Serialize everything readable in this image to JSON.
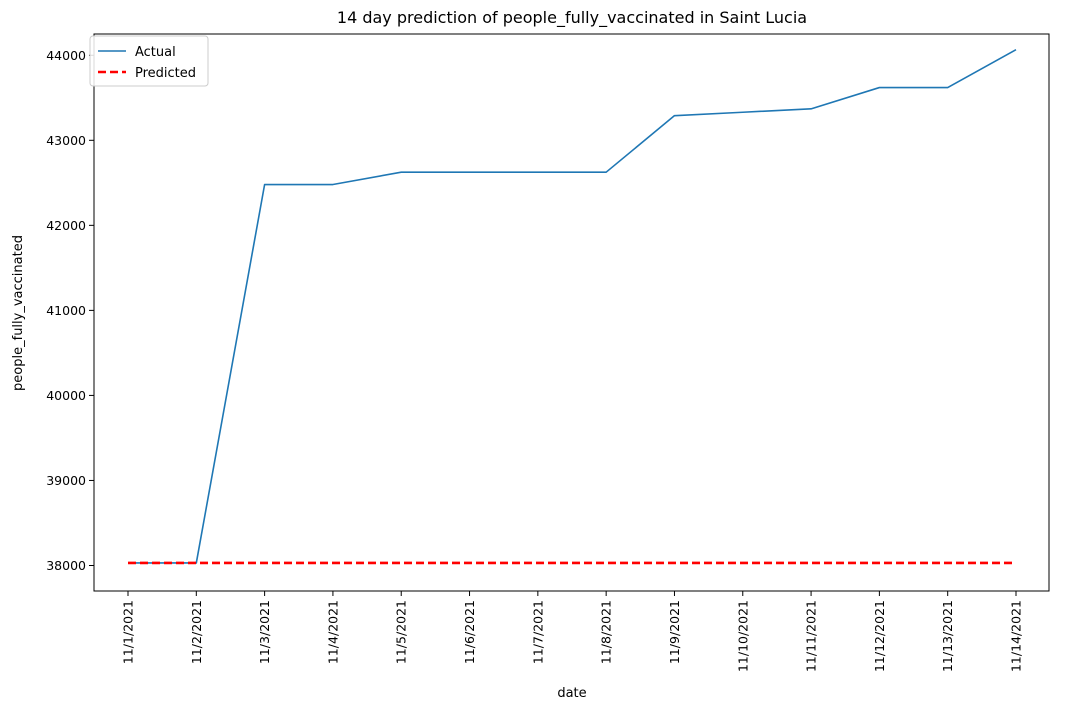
{
  "chart_data": {
    "type": "line",
    "title": "14 day prediction of people_fully_vaccinated in Saint Lucia",
    "xlabel": "date",
    "ylabel": "people_fully_vaccinated",
    "categories": [
      "11/1/2021",
      "11/2/2021",
      "11/3/2021",
      "11/4/2021",
      "11/5/2021",
      "11/6/2021",
      "11/7/2021",
      "11/8/2021",
      "11/9/2021",
      "11/10/2021",
      "11/11/2021",
      "11/12/2021",
      "11/13/2021",
      "11/14/2021"
    ],
    "ylim": [
      37700,
      44250
    ],
    "yticks": [
      38000,
      39000,
      40000,
      41000,
      42000,
      43000,
      44000
    ],
    "grid": false,
    "legend_position": "top-left",
    "series": [
      {
        "name": "Actual",
        "color": "#1f77b4",
        "style": "solid",
        "values": [
          38030,
          38030,
          42480,
          42480,
          42625,
          42625,
          42625,
          42625,
          43290,
          43330,
          43370,
          43620,
          43620,
          44065
        ]
      },
      {
        "name": "Predicted",
        "color": "#ff0000",
        "style": "dashed",
        "values": [
          38030,
          38030,
          38030,
          38030,
          38030,
          38030,
          38030,
          38030,
          38030,
          38030,
          38030,
          38030,
          38030,
          38030
        ]
      }
    ]
  }
}
